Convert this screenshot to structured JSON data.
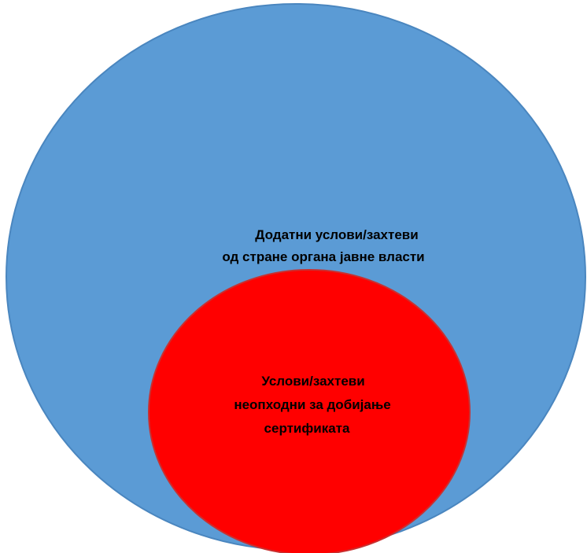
{
  "diagram": {
    "outer_circle": {
      "label_lines": [
        "Додатни услови/захтеви",
        "од стране органа јавне власти"
      ],
      "fill_color": "#5b9bd5",
      "stroke_color": "#4a86bf"
    },
    "inner_circle": {
      "label_lines": [
        "Услови/захтеви",
        "неопходни за добијање",
        "сертификата"
      ],
      "fill_color": "#ff0000",
      "stroke_color": "#c93030"
    }
  }
}
